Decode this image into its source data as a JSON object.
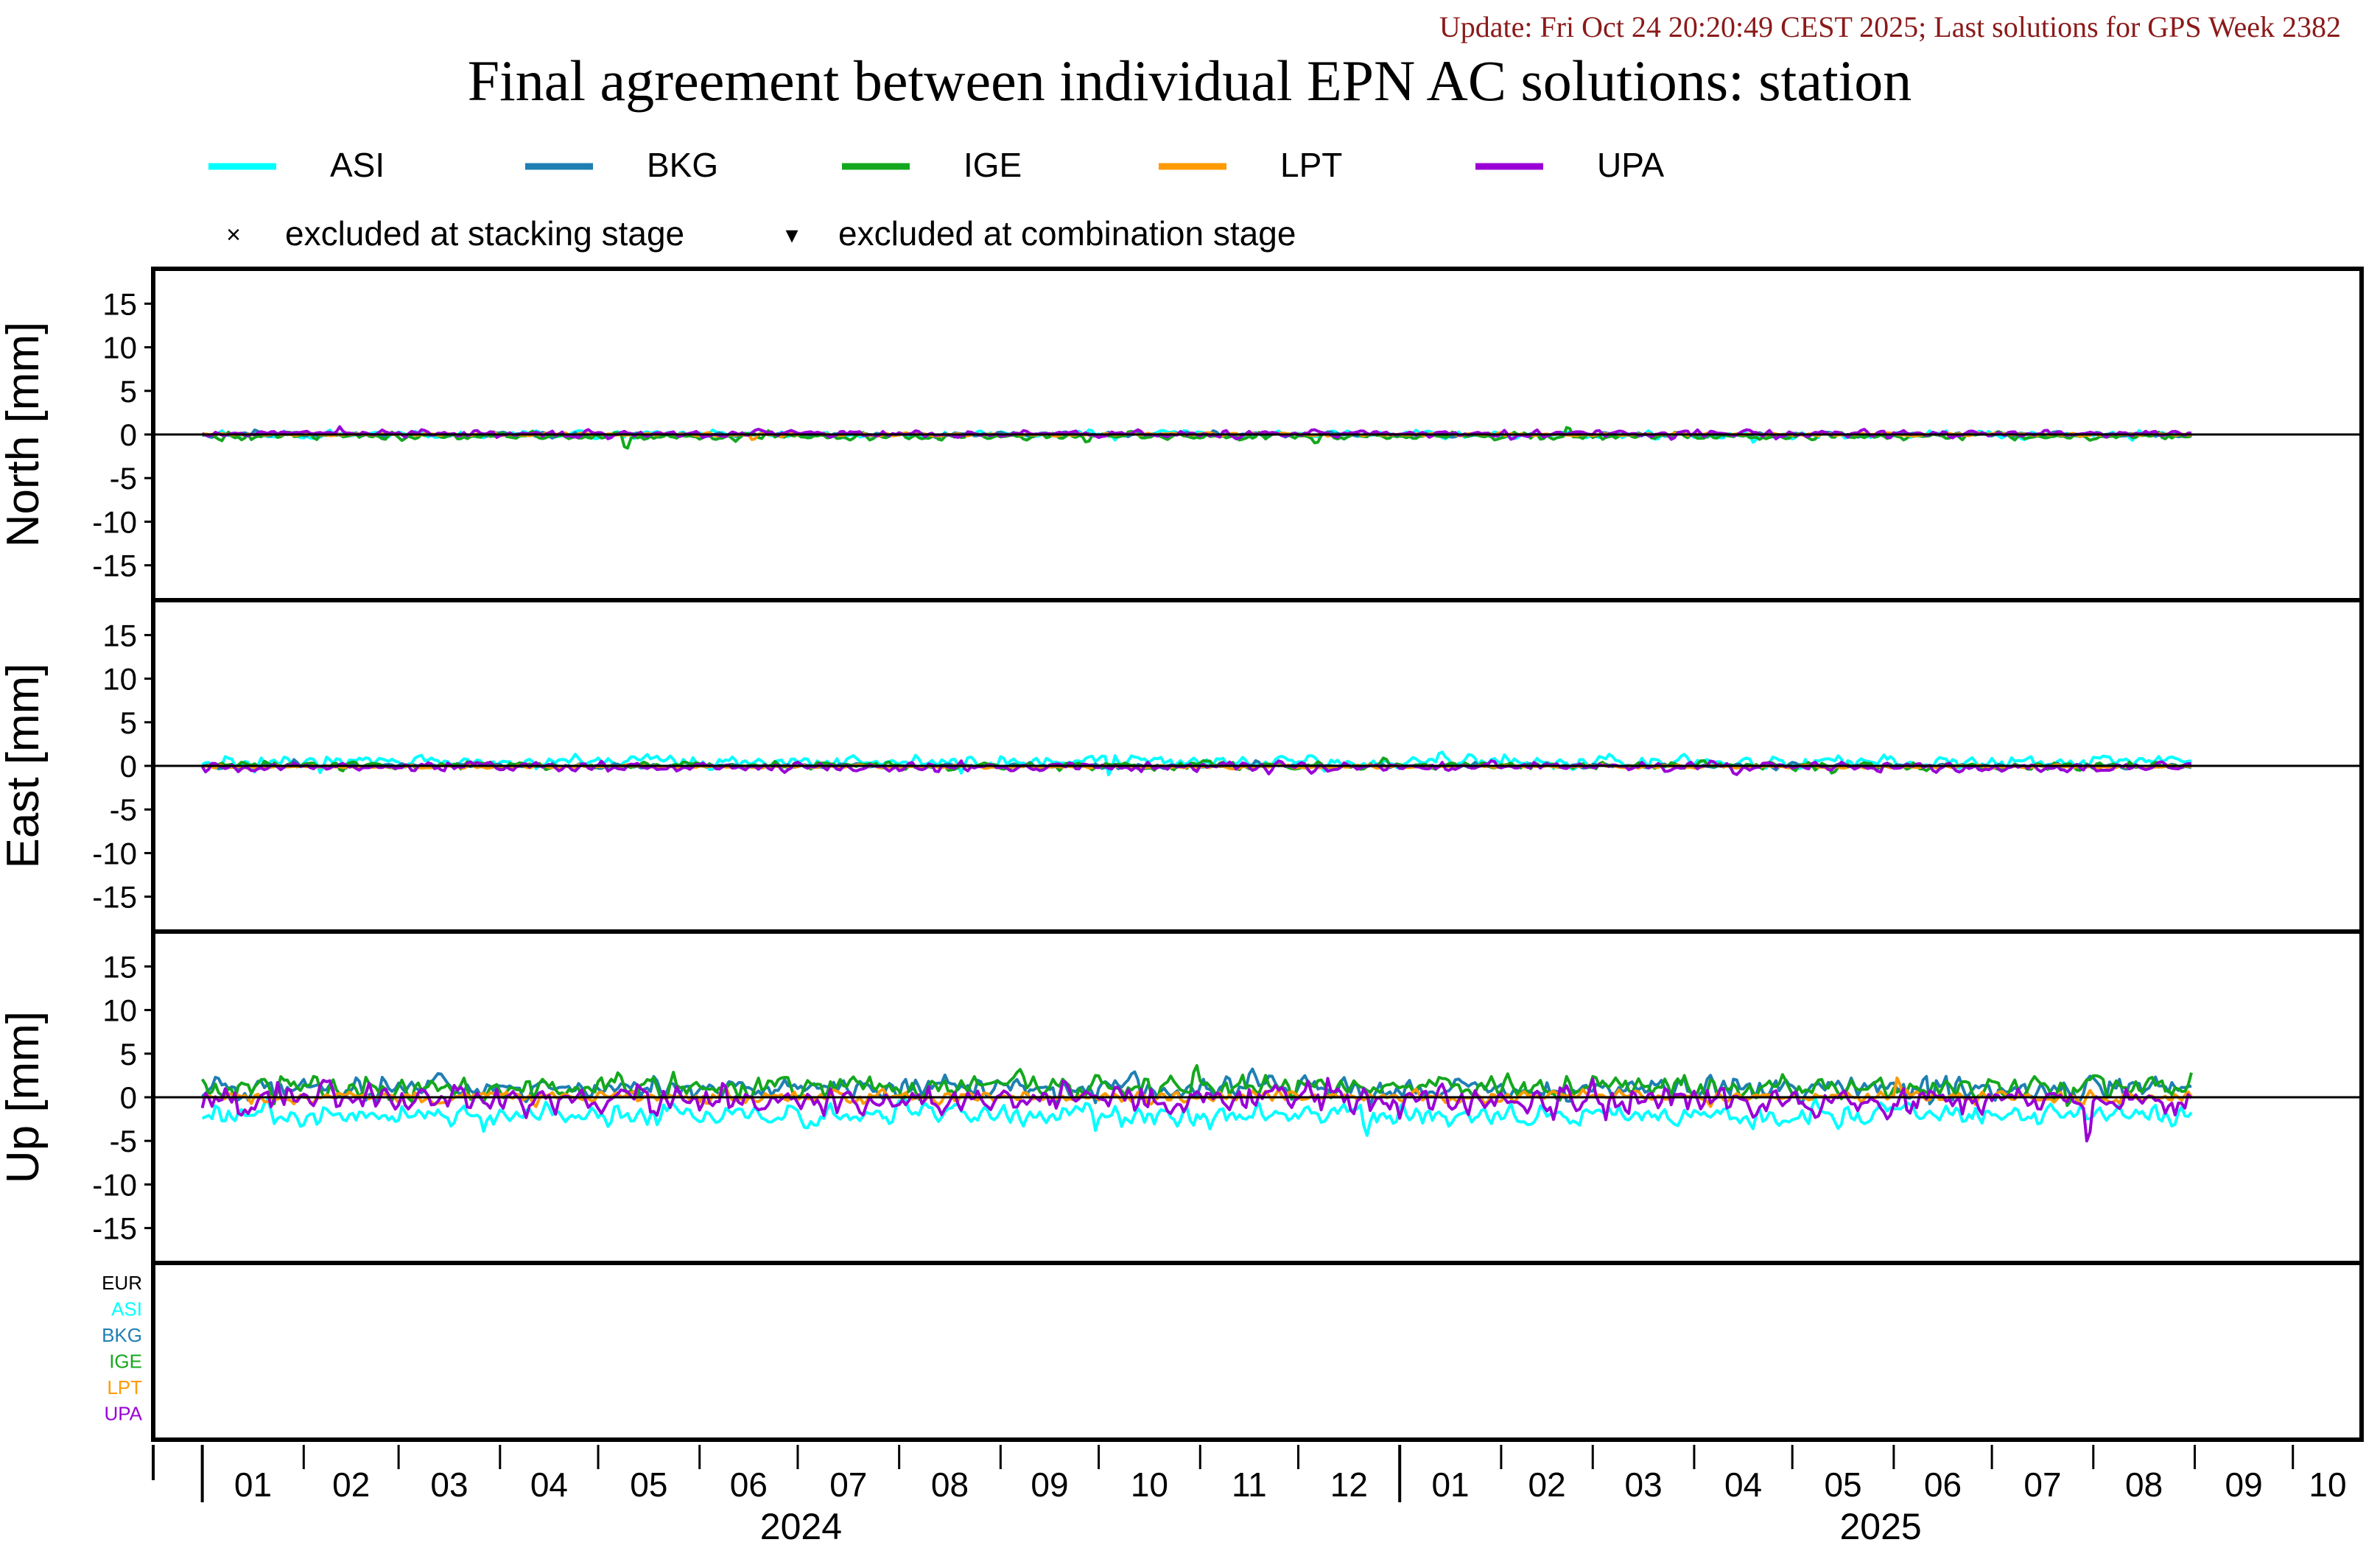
{
  "header": {
    "update_text": "Update: Fri Oct 24 20:20:49 CEST 2025; Last solutions for GPS Week 2382",
    "update_color": "#8b1a1a",
    "title": "Final agreement between individual EPN AC solutions: station"
  },
  "legend": {
    "series": [
      {
        "name": "ASI",
        "color": "#00ffff"
      },
      {
        "name": "BKG",
        "color": "#1f7fb3"
      },
      {
        "name": "IGE",
        "color": "#14a81e"
      },
      {
        "name": "LPT",
        "color": "#ff9a00"
      },
      {
        "name": "UPA",
        "color": "#9a00d6"
      }
    ],
    "markers": [
      {
        "symbol": "×",
        "label": "excluded at stacking stage"
      },
      {
        "symbol": "▾",
        "label": "excluded at combination stage"
      }
    ]
  },
  "x_axis": {
    "months": [
      "01",
      "02",
      "03",
      "04",
      "05",
      "06",
      "07",
      "08",
      "09",
      "10",
      "11",
      "12",
      "01",
      "02",
      "03",
      "04",
      "05",
      "06",
      "07",
      "08",
      "09",
      "10"
    ],
    "years": [
      "2024",
      "2025"
    ]
  },
  "exclusion_panel": {
    "labels": [
      {
        "text": "EUR",
        "color": "#000000"
      },
      {
        "text": "ASI",
        "color": "#00ffff"
      },
      {
        "text": "BKG",
        "color": "#1f7fb3"
      },
      {
        "text": "IGE",
        "color": "#14a81e"
      },
      {
        "text": "LPT",
        "color": "#ff9a00"
      },
      {
        "text": "UPA",
        "color": "#9a00d6"
      }
    ]
  },
  "chart_data": [
    {
      "type": "line",
      "ylabel": "North [mm]",
      "ylim": [
        -19,
        19
      ],
      "yticks": [
        15,
        10,
        5,
        0,
        -5,
        -10,
        -15
      ],
      "xlim": [
        "2023-12-17",
        "2025-10-22"
      ],
      "x_range_data": [
        "2024-01-01",
        "2025-08-31"
      ],
      "series": [
        {
          "name": "ASI",
          "amplitude": 0.5,
          "mean": 0.0
        },
        {
          "name": "BKG",
          "amplitude": 0.3,
          "mean": 0.0
        },
        {
          "name": "IGE",
          "amplitude": 0.5,
          "mean": -0.2
        },
        {
          "name": "LPT",
          "amplitude": 0.2,
          "mean": 0.0
        },
        {
          "name": "UPA",
          "amplitude": 0.5,
          "mean": 0.1
        }
      ]
    },
    {
      "type": "line",
      "ylabel": "East [mm]",
      "ylim": [
        -19,
        19
      ],
      "yticks": [
        15,
        10,
        5,
        0,
        -5,
        -10,
        -15
      ],
      "xlim": [
        "2023-12-17",
        "2025-10-22"
      ],
      "x_range_data": [
        "2024-01-01",
        "2025-08-31"
      ],
      "series": [
        {
          "name": "ASI",
          "amplitude": 0.9,
          "mean": 0.4
        },
        {
          "name": "BKG",
          "amplitude": 0.3,
          "mean": 0.0
        },
        {
          "name": "IGE",
          "amplitude": 0.5,
          "mean": 0.0
        },
        {
          "name": "LPT",
          "amplitude": 0.2,
          "mean": -0.1
        },
        {
          "name": "UPA",
          "amplitude": 0.6,
          "mean": -0.1
        }
      ]
    },
    {
      "type": "line",
      "ylabel": "Up [mm]",
      "ylim": [
        -19,
        19
      ],
      "yticks": [
        15,
        10,
        5,
        0,
        -5,
        -10,
        -15
      ],
      "xlim": [
        "2023-12-17",
        "2025-10-22"
      ],
      "x_range_data": [
        "2024-01-01",
        "2025-08-31"
      ],
      "series": [
        {
          "name": "ASI",
          "amplitude": 1.5,
          "mean": -2.0
        },
        {
          "name": "BKG",
          "amplitude": 1.6,
          "mean": 1.0
        },
        {
          "name": "IGE",
          "amplitude": 1.6,
          "mean": 1.2
        },
        {
          "name": "LPT",
          "amplitude": 0.8,
          "mean": 0.0
        },
        {
          "name": "UPA",
          "amplitude": 2.0,
          "mean": -0.3
        }
      ]
    }
  ]
}
